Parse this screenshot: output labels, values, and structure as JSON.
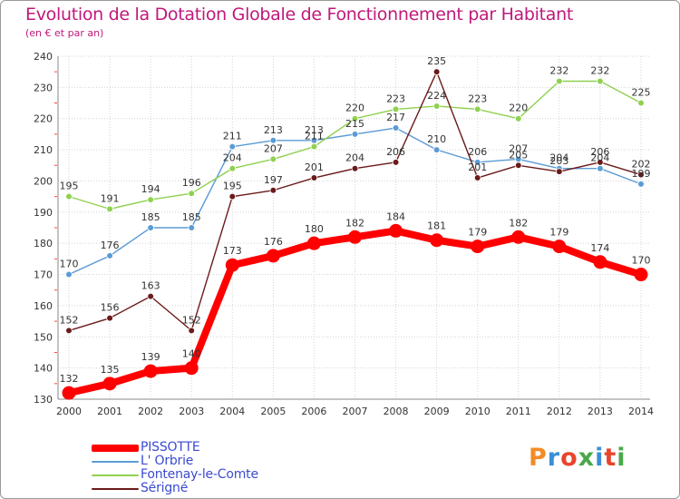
{
  "header": {
    "title": "Evolution de la Dotation Globale de Fonctionnement par Habitant",
    "subtitle": "(en € et par an)"
  },
  "logo": {
    "text": "Proxiti",
    "colors": [
      "#f28c28",
      "#3a8fd6",
      "#e8452c",
      "#4aa84a",
      "#3a8fd6",
      "#e8452c",
      "#4aa84a"
    ]
  },
  "chart_data": {
    "type": "line",
    "x": [
      2000,
      2001,
      2002,
      2003,
      2004,
      2005,
      2006,
      2007,
      2008,
      2009,
      2010,
      2011,
      2012,
      2013,
      2014
    ],
    "ylim": [
      130,
      240
    ],
    "yticks": [
      130,
      140,
      150,
      160,
      170,
      180,
      190,
      200,
      210,
      220,
      230,
      240
    ],
    "grid": true,
    "legend_position": "bottom-left",
    "series": [
      {
        "name": "PISSOTTE",
        "color": "#ff0000",
        "values": [
          132,
          135,
          139,
          140,
          173,
          176,
          180,
          182,
          184,
          181,
          179,
          182,
          179,
          174,
          170
        ]
      },
      {
        "name": "L' Orbrie",
        "color": "#5b9bd5",
        "values": [
          170,
          176,
          185,
          185,
          211,
          213,
          213,
          215,
          217,
          210,
          206,
          207,
          204,
          204,
          199
        ]
      },
      {
        "name": "Fontenay-le-Comte",
        "color": "#8fd14f",
        "values": [
          195,
          191,
          194,
          196,
          204,
          207,
          211,
          220,
          223,
          224,
          223,
          220,
          232,
          232,
          225
        ]
      },
      {
        "name": "Sérigné",
        "color": "#6b1a1a",
        "values": [
          152,
          156,
          163,
          152,
          195,
          197,
          201,
          204,
          206,
          235,
          201,
          205,
          203,
          206,
          202
        ]
      }
    ]
  }
}
